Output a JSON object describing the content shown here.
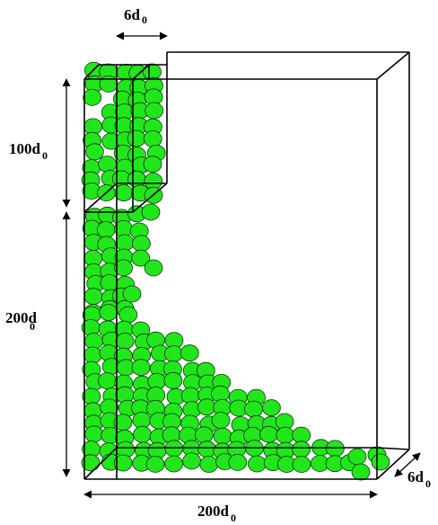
{
  "labels": {
    "top_width": {
      "main": "6d",
      "sub": "0"
    },
    "hopper_height": {
      "main": "100d",
      "sub": "0"
    },
    "box_height": {
      "main": "200d",
      "sub": "0"
    },
    "box_width": {
      "main": "200d",
      "sub": "0"
    },
    "depth": {
      "main": "6d",
      "sub": "0"
    }
  },
  "colors": {
    "particle_fill": "#22e61c",
    "particle_stroke": "#0a3a08",
    "line": "#000000"
  }
}
